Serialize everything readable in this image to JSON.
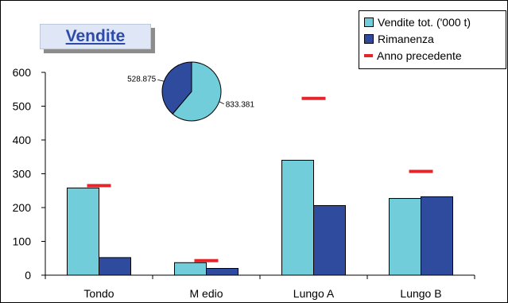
{
  "chart_data": [
    {
      "type": "bar",
      "title": "Vendite",
      "categories": [
        "Tondo",
        "M edio",
        "Lungo A",
        "Lungo B"
      ],
      "yticks": [
        "0",
        "100",
        "200",
        "300",
        "400",
        "500",
        "600"
      ],
      "ylim": [
        0,
        600
      ],
      "series": [
        {
          "name": "Vendite tot. ('000 t)",
          "values": [
            258,
            37,
            340,
            227
          ],
          "color": "#70cdd9"
        },
        {
          "name": "Rimanenza",
          "values": [
            52,
            20,
            206,
            232
          ],
          "color": "#2f4b9e"
        }
      ],
      "markers": {
        "name": "Anno precedente",
        "values": [
          265,
          43,
          523,
          307
        ],
        "color": "#e3262b"
      },
      "grid": false,
      "legend": "top-right"
    },
    {
      "type": "pie",
      "slices": [
        {
          "label": "833.381",
          "value": 833.381,
          "color": "#70cdd9"
        },
        {
          "label": "528.875",
          "value": 528.875,
          "color": "#2f4b9e"
        }
      ]
    }
  ]
}
